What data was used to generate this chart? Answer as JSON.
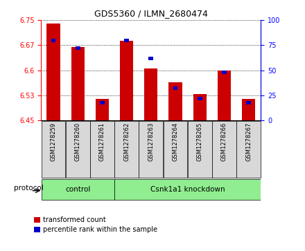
{
  "title": "GDS5360 / ILMN_2680474",
  "samples": [
    "GSM1278259",
    "GSM1278260",
    "GSM1278261",
    "GSM1278262",
    "GSM1278263",
    "GSM1278264",
    "GSM1278265",
    "GSM1278266",
    "GSM1278267"
  ],
  "transformed_counts": [
    6.74,
    6.67,
    6.515,
    6.688,
    6.605,
    6.565,
    6.53,
    6.6,
    6.515
  ],
  "percentile_ranks": [
    80,
    72,
    18,
    80,
    62,
    32,
    22,
    48,
    18
  ],
  "ylim_left": [
    6.45,
    6.75
  ],
  "ylim_right": [
    0,
    100
  ],
  "yticks_left": [
    6.45,
    6.525,
    6.6,
    6.675,
    6.75
  ],
  "yticks_right": [
    0,
    25,
    50,
    75,
    100
  ],
  "bar_color_red": "#cc0000",
  "bar_color_blue": "#0000cc",
  "control_label": "control",
  "knockdown_label": "Csnk1a1 knockdown",
  "control_count": 3,
  "group_color": "#90ee90",
  "protocol_label": "protocol",
  "legend_red_label": "transformed count",
  "legend_blue_label": "percentile rank within the sample",
  "bar_width": 0.55,
  "base_value": 6.45,
  "grid_color": "#000000",
  "sample_bg_color": "#d8d8d8",
  "title_fontsize": 9,
  "tick_fontsize": 7,
  "label_fontsize": 7
}
